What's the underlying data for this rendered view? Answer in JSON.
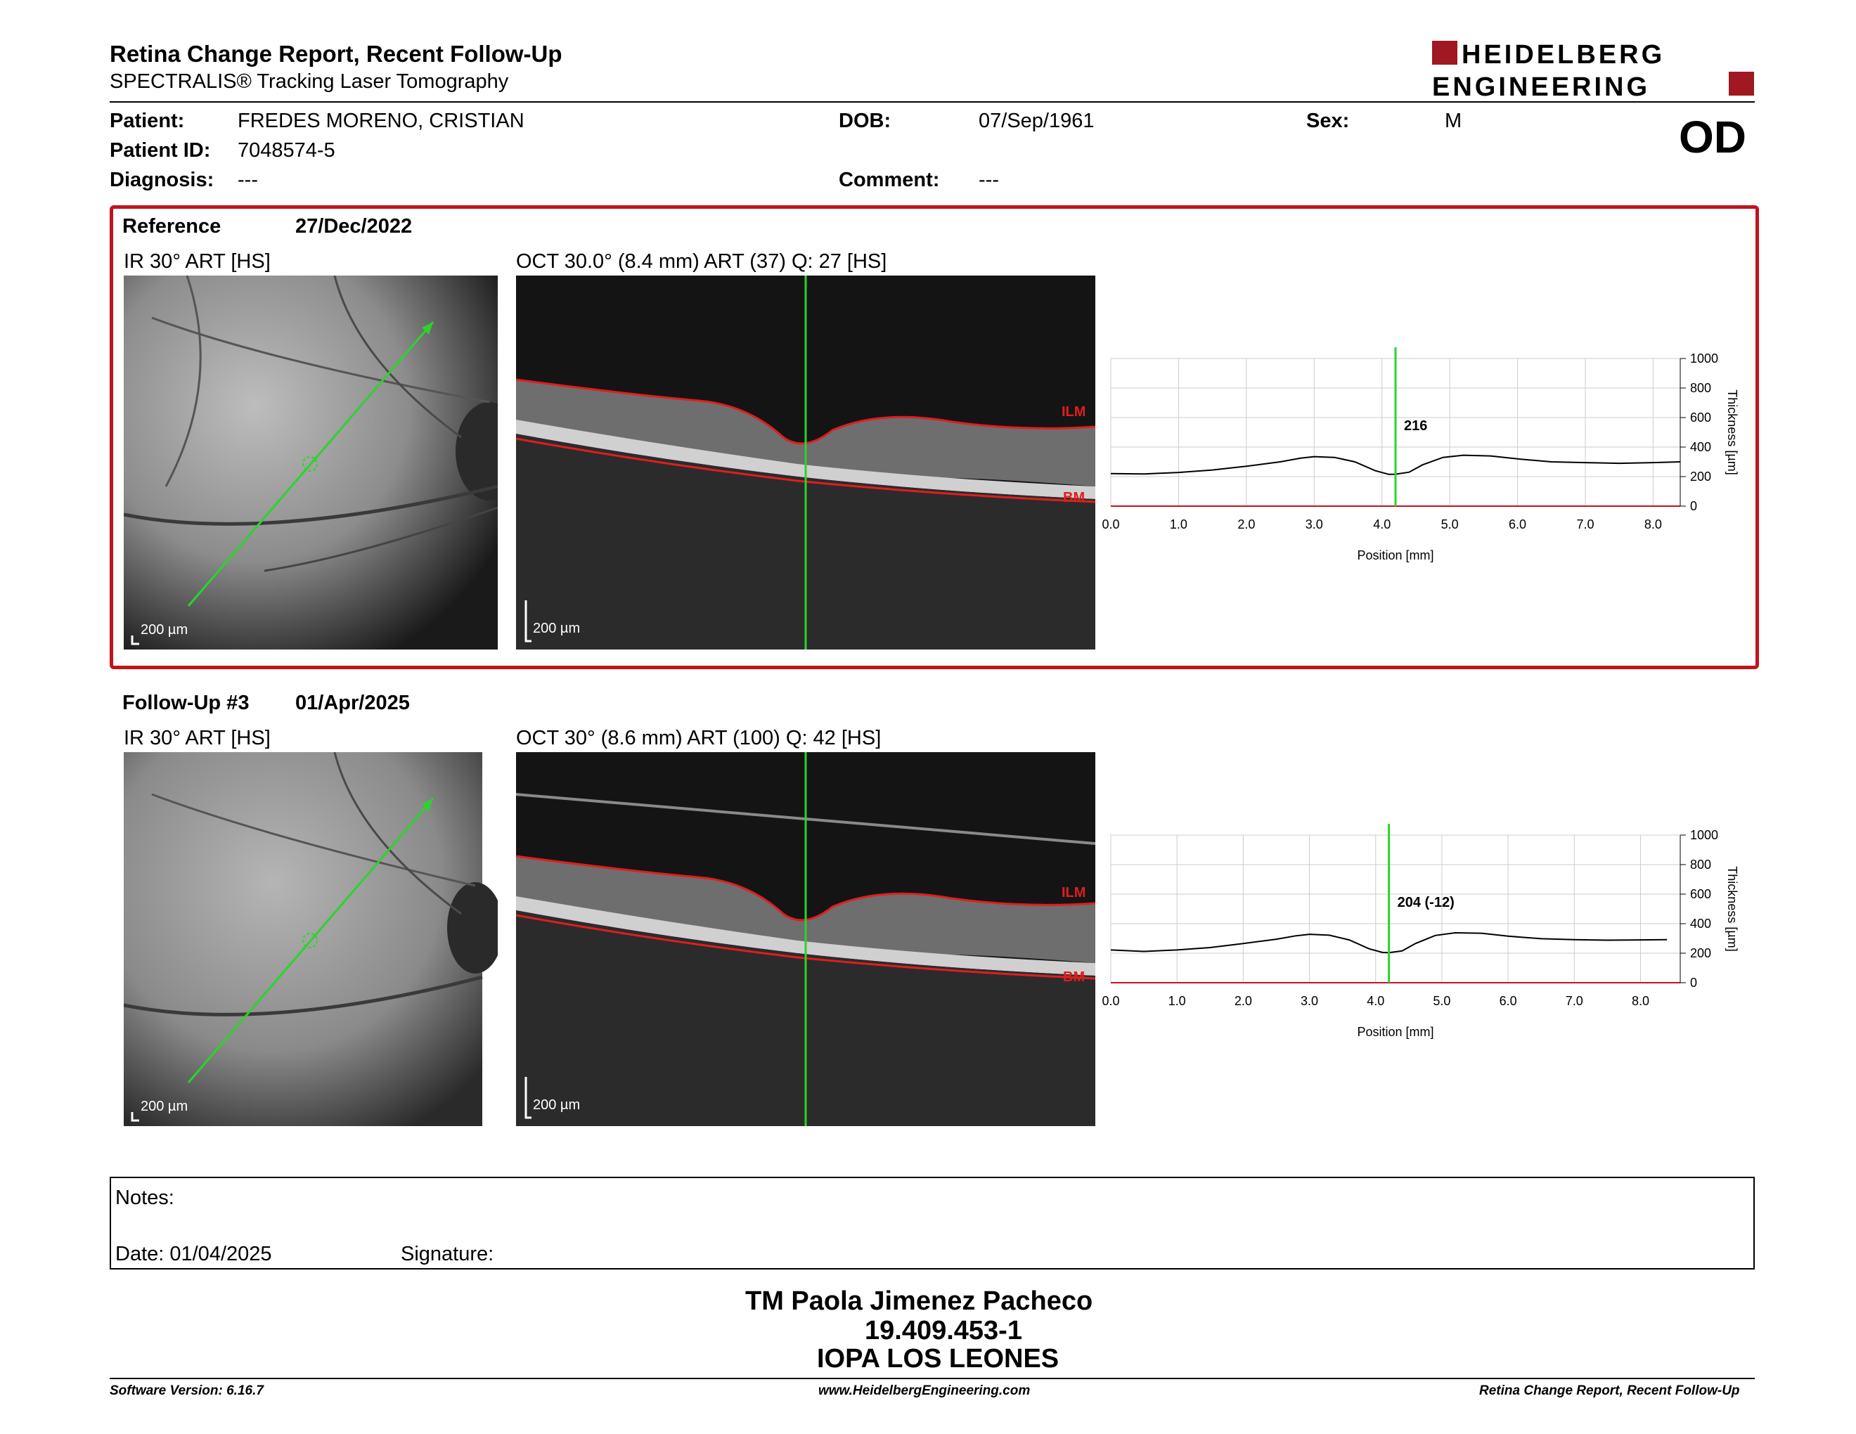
{
  "header": {
    "title": "Retina Change Report, Recent Follow-Up",
    "subtitle": "SPECTRALIS® Tracking Laser Tomography",
    "logo_line1": "HEIDELBERG",
    "logo_line2": "ENGINEERING"
  },
  "patient": {
    "patient_label": "Patient:",
    "patient_value": "FREDES MORENO, CRISTIAN",
    "id_label": "Patient ID:",
    "id_value": "7048574-5",
    "diagnosis_label": "Diagnosis:",
    "diagnosis_value": "---",
    "dob_label": "DOB:",
    "dob_value": "07/Sep/1961",
    "comment_label": "Comment:",
    "comment_value": "---",
    "sex_label": "Sex:",
    "sex_value": "M",
    "eye": "OD"
  },
  "reference": {
    "label": "Reference",
    "date": "27/Dec/2022",
    "ir_label": "IR 30° ART [HS]",
    "oct_label": "OCT 30.0° (8.4 mm) ART (37) Q: 27 [HS]",
    "scale": "200 µm",
    "ilm": "ILM",
    "bm": "BM",
    "marker_value": "216"
  },
  "followup": {
    "label": "Follow-Up #3",
    "date": "01/Apr/2025",
    "ir_label": "IR 30° ART [HS]",
    "oct_label": "OCT 30° (8.6 mm) ART (100) Q: 42 [HS]",
    "scale": "200 µm",
    "ilm": "ILM",
    "bm": "BM",
    "marker_value": "204 (-12)"
  },
  "chart_data": [
    {
      "type": "line",
      "xlabel": "Position [mm]",
      "ylabel": "Thickness [µm]",
      "xlim": [
        0,
        8.4
      ],
      "ylim": [
        0,
        1000
      ],
      "x_ticks": [
        "0.0",
        "1.0",
        "2.0",
        "3.0",
        "4.0",
        "5.0",
        "6.0",
        "7.0",
        "8.0"
      ],
      "y_ticks": [
        "0",
        "200",
        "400",
        "600",
        "800",
        "1000"
      ],
      "grid": true,
      "marker_x": 4.2,
      "marker_label": "216",
      "series": [
        {
          "values_x": [
            0,
            0.5,
            1,
            1.5,
            2,
            2.5,
            2.8,
            3.0,
            3.3,
            3.6,
            3.9,
            4.1,
            4.2,
            4.4,
            4.6,
            4.9,
            5.2,
            5.6,
            6,
            6.5,
            7,
            7.5,
            8,
            8.4
          ],
          "values_y": [
            220,
            218,
            228,
            245,
            270,
            300,
            325,
            335,
            330,
            300,
            240,
            215,
            216,
            230,
            280,
            330,
            345,
            340,
            320,
            300,
            295,
            290,
            295,
            300
          ]
        }
      ]
    },
    {
      "type": "line",
      "xlabel": "Position [mm]",
      "ylabel": "Thickness [µm]",
      "xlim": [
        0,
        8.6
      ],
      "ylim": [
        0,
        1000
      ],
      "x_ticks": [
        "0.0",
        "1.0",
        "2.0",
        "3.0",
        "4.0",
        "5.0",
        "6.0",
        "7.0",
        "8.0"
      ],
      "y_ticks": [
        "0",
        "200",
        "400",
        "600",
        "800",
        "1000"
      ],
      "grid": true,
      "marker_x": 4.2,
      "marker_label": "204 (-12)",
      "series": [
        {
          "values_x": [
            0,
            0.5,
            1,
            1.5,
            2,
            2.5,
            2.8,
            3.0,
            3.3,
            3.6,
            3.9,
            4.1,
            4.2,
            4.4,
            4.6,
            4.9,
            5.2,
            5.6,
            6,
            6.5,
            7,
            7.5,
            8,
            8.4
          ],
          "values_y": [
            222,
            212,
            222,
            238,
            265,
            295,
            318,
            328,
            322,
            290,
            230,
            205,
            204,
            215,
            265,
            320,
            338,
            335,
            315,
            298,
            292,
            288,
            290,
            292
          ]
        }
      ]
    }
  ],
  "notes": {
    "notes_label": "Notes:",
    "date_label": "Date: 01/04/2025",
    "signature_label": "Signature:"
  },
  "signer": {
    "name": "TM Paola Jimenez Pacheco",
    "rut": "19.409.453-1",
    "org": "IOPA LOS LEONES"
  },
  "footer": {
    "left": "Software Version: 6.16.7",
    "center": "www.HeidelbergEngineering.com",
    "right": "Retina Change Report, Recent Follow-Up"
  },
  "colors": {
    "brand_red": "#c0141c",
    "green_line": "#2bd42b",
    "layer_red": "#e01e1e"
  }
}
